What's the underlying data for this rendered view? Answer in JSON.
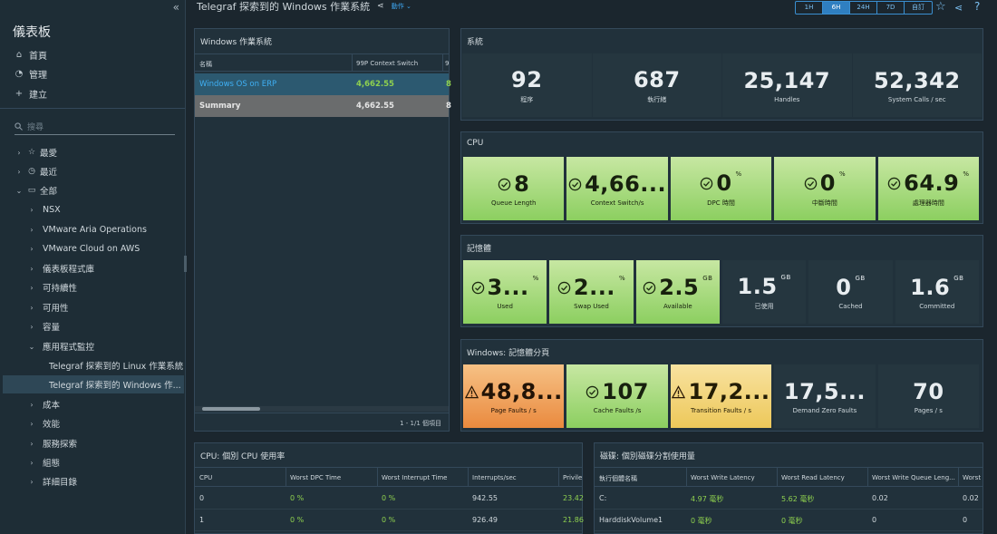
{
  "sidebar": {
    "collapse_icon": "double-chevron-left-icon",
    "title": "儀表板",
    "top_items": [
      {
        "icon": "home-icon",
        "label": "首頁"
      },
      {
        "icon": "gauge-icon",
        "label": "管理"
      },
      {
        "icon": "plus-icon",
        "label": "建立"
      }
    ],
    "search_placeholder": "搜尋",
    "tree": [
      {
        "label": "最愛",
        "icon": "star-icon",
        "chevron": "›"
      },
      {
        "label": "最近",
        "icon": "clock-icon",
        "chevron": "›"
      },
      {
        "label": "全部",
        "icon": "folder-icon",
        "chevron": "⌄"
      },
      {
        "label": "NSX",
        "chevron": "›"
      },
      {
        "label": "VMware Aria Operations",
        "chevron": "›"
      },
      {
        "label": "VMware Cloud on AWS",
        "chevron": "›"
      },
      {
        "label": "儀表板程式庫",
        "chevron": "›"
      },
      {
        "label": "可持續性",
        "chevron": "›"
      },
      {
        "label": "可用性",
        "chevron": "›"
      },
      {
        "label": "容量",
        "chevron": "›"
      },
      {
        "label": "應用程式監控",
        "chevron": "⌄"
      },
      {
        "label": "Telegraf 探索到的 Linux 作業系統",
        "chevron": ""
      },
      {
        "label": "Telegraf 探索到的 Windows 作...",
        "chevron": ""
      },
      {
        "label": "成本",
        "chevron": "›"
      },
      {
        "label": "效能",
        "chevron": "›"
      },
      {
        "label": "服務探索",
        "chevron": "›"
      },
      {
        "label": "組態",
        "chevron": "›"
      },
      {
        "label": "詳細目錄",
        "chevron": "›"
      }
    ]
  },
  "header": {
    "title": "Telegraf 探索到的 Windows 作業系統",
    "share_icon": "share-icon",
    "actions_label": "動作",
    "time_ranges": [
      "1H",
      "6H",
      "24H",
      "7D",
      "自訂"
    ],
    "active_range": "6H",
    "icons": [
      "star-icon",
      "share-icon",
      "help-icon"
    ]
  },
  "windows_panel": {
    "title": "Windows 作業系統",
    "columns": [
      "名稱",
      "99P Context Switch",
      "9"
    ],
    "rows": [
      {
        "name": "Windows OS on ERP",
        "value": "4,662.55",
        "trunc": "8"
      },
      {
        "name": "Summary",
        "value": "4,662.55",
        "trunc": "8"
      }
    ],
    "footer": "1 - 1/1 個項目"
  },
  "system_panel": {
    "title": "系統",
    "kpis": [
      {
        "value": "92",
        "label": "程序"
      },
      {
        "value": "687",
        "label": "執行緒"
      },
      {
        "value": "25,147",
        "label": "Handles"
      },
      {
        "value": "52,342",
        "label": "System Calls / sec"
      }
    ]
  },
  "cpu_panel": {
    "title": "CPU",
    "kpis": [
      {
        "value": "8",
        "unit": "",
        "label": "Queue Length",
        "status": "ok"
      },
      {
        "value": "4,66...",
        "unit": "",
        "label": "Context Switch/s",
        "status": "ok"
      },
      {
        "value": "0",
        "unit": "%",
        "label": "DPC 時間",
        "status": "ok"
      },
      {
        "value": "0",
        "unit": "%",
        "label": "中斷時間",
        "status": "ok"
      },
      {
        "value": "64.9",
        "unit": "%",
        "label": "處理器時間",
        "status": "ok"
      }
    ]
  },
  "memory_panel": {
    "title": "記憶體",
    "kpis": [
      {
        "value": "3...",
        "unit": "%",
        "label": "Used",
        "status": "ok"
      },
      {
        "value": "2...",
        "unit": "%",
        "label": "Swap Used",
        "status": "ok"
      },
      {
        "value": "2.5",
        "unit": "GB",
        "label": "Available",
        "status": "ok"
      },
      {
        "value": "1.5",
        "unit": "GB",
        "label": "已使用",
        "status": "none"
      },
      {
        "value": "0",
        "unit": "GB",
        "label": "Cached",
        "status": "none"
      },
      {
        "value": "1.6",
        "unit": "GB",
        "label": "Committed",
        "status": "none"
      }
    ]
  },
  "mempage_panel": {
    "title": "Windows: 記憶體分頁",
    "kpis": [
      {
        "value": "48,8...",
        "label": "Page Faults / s",
        "status": "warn-orange"
      },
      {
        "value": "107",
        "label": "Cache Faults /s",
        "status": "ok"
      },
      {
        "value": "17,2...",
        "label": "Transition Faults / s",
        "status": "warn-yellow"
      },
      {
        "value": "17,5...",
        "label": "Demand Zero Faults",
        "status": "none"
      },
      {
        "value": "70",
        "label": "Pages / s",
        "status": "none"
      }
    ]
  },
  "cpu_table": {
    "title": "CPU: 個別 CPU 使用率",
    "columns": [
      "CPU",
      "Worst DPC Time",
      "Worst Interrupt Time",
      "Interrupts/sec",
      "Privile"
    ],
    "rows": [
      [
        "0",
        "0 %",
        "0 %",
        "942.55",
        "23.42"
      ],
      [
        "1",
        "0 %",
        "0 %",
        "926.49",
        "21.86"
      ]
    ]
  },
  "disk_table": {
    "title": "磁碟: 個別磁碟分割使用量",
    "columns": [
      "執行個體名稱",
      "Worst Write Latency",
      "Worst Read Latency",
      "Worst Write Queue Leng...",
      "Worst"
    ],
    "rows": [
      [
        "C:",
        "4.97 毫秒",
        "5.62 毫秒",
        "0.02",
        "0.02"
      ],
      [
        "HarddiskVolume1",
        "0 毫秒",
        "0 毫秒",
        "0",
        "0"
      ]
    ]
  },
  "colors": {
    "ok_green": "#8ccf60",
    "warn_orange": "#ea8a3e",
    "warn_yellow": "#edc85a",
    "link_blue": "#3fa9f5",
    "value_green": "#8fd14f"
  }
}
